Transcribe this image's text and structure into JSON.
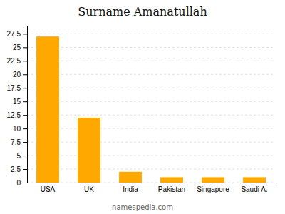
{
  "chart_data": {
    "type": "bar",
    "title": "Surname Amanatullah",
    "categories": [
      "USA",
      "UK",
      "India",
      "Pakistan",
      "Singapore",
      "Saudi A."
    ],
    "values": [
      27,
      12,
      2,
      1,
      1,
      1
    ],
    "color": "#FFA800",
    "ylim": [
      0,
      29
    ],
    "yticks": [
      0,
      2.5,
      5,
      7.5,
      10,
      12.5,
      15,
      17.5,
      20,
      22.5,
      25,
      27.5
    ],
    "grid": true,
    "annotations": [
      "namespedia.com"
    ]
  }
}
